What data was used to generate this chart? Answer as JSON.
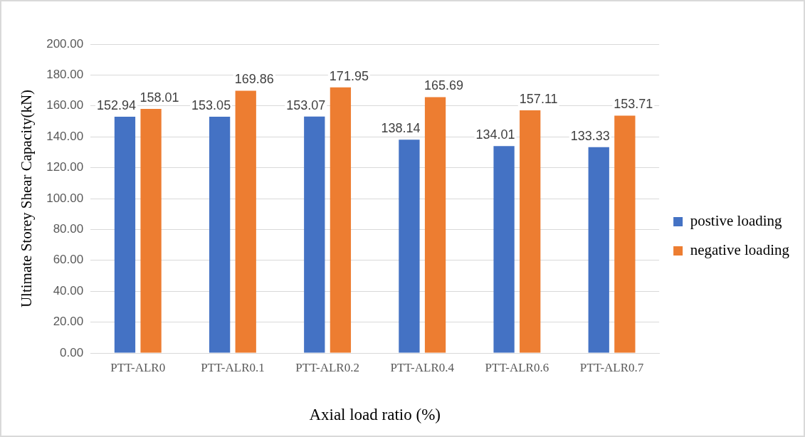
{
  "chart_data": {
    "type": "bar",
    "xlabel": "Axial load ratio (%)",
    "ylabel": "Ultimate Storey Shear Capacity(kN)",
    "categories": [
      "PTT-ALR0",
      "PTT-ALR0.1",
      "PTT-ALR0.2",
      "PTT-ALR0.4",
      "PTT-ALR0.6",
      "PTT-ALR0.7"
    ],
    "series": [
      {
        "name": "postive loading",
        "color": "#4472c4",
        "values": [
          152.94,
          153.05,
          153.07,
          138.14,
          134.01,
          133.33
        ]
      },
      {
        "name": "negative loading",
        "color": "#ed7d31",
        "values": [
          158.01,
          169.86,
          171.95,
          165.69,
          157.11,
          153.71
        ]
      }
    ],
    "ylim": [
      0,
      200
    ],
    "yticks": [
      {
        "value": 0,
        "label": "0.00"
      },
      {
        "value": 20,
        "label": "20.00"
      },
      {
        "value": 40,
        "label": "40.00"
      },
      {
        "value": 60,
        "label": "60.00"
      },
      {
        "value": 80,
        "label": "80.00"
      },
      {
        "value": 100,
        "label": "100.00"
      },
      {
        "value": 120,
        "label": "120.00"
      },
      {
        "value": 140,
        "label": "140.00"
      },
      {
        "value": 160,
        "label": "160.00"
      },
      {
        "value": 180,
        "label": "180.00"
      },
      {
        "value": 200,
        "label": "200.00"
      }
    ],
    "grid": "y",
    "legend": "right",
    "data_labels": true
  }
}
